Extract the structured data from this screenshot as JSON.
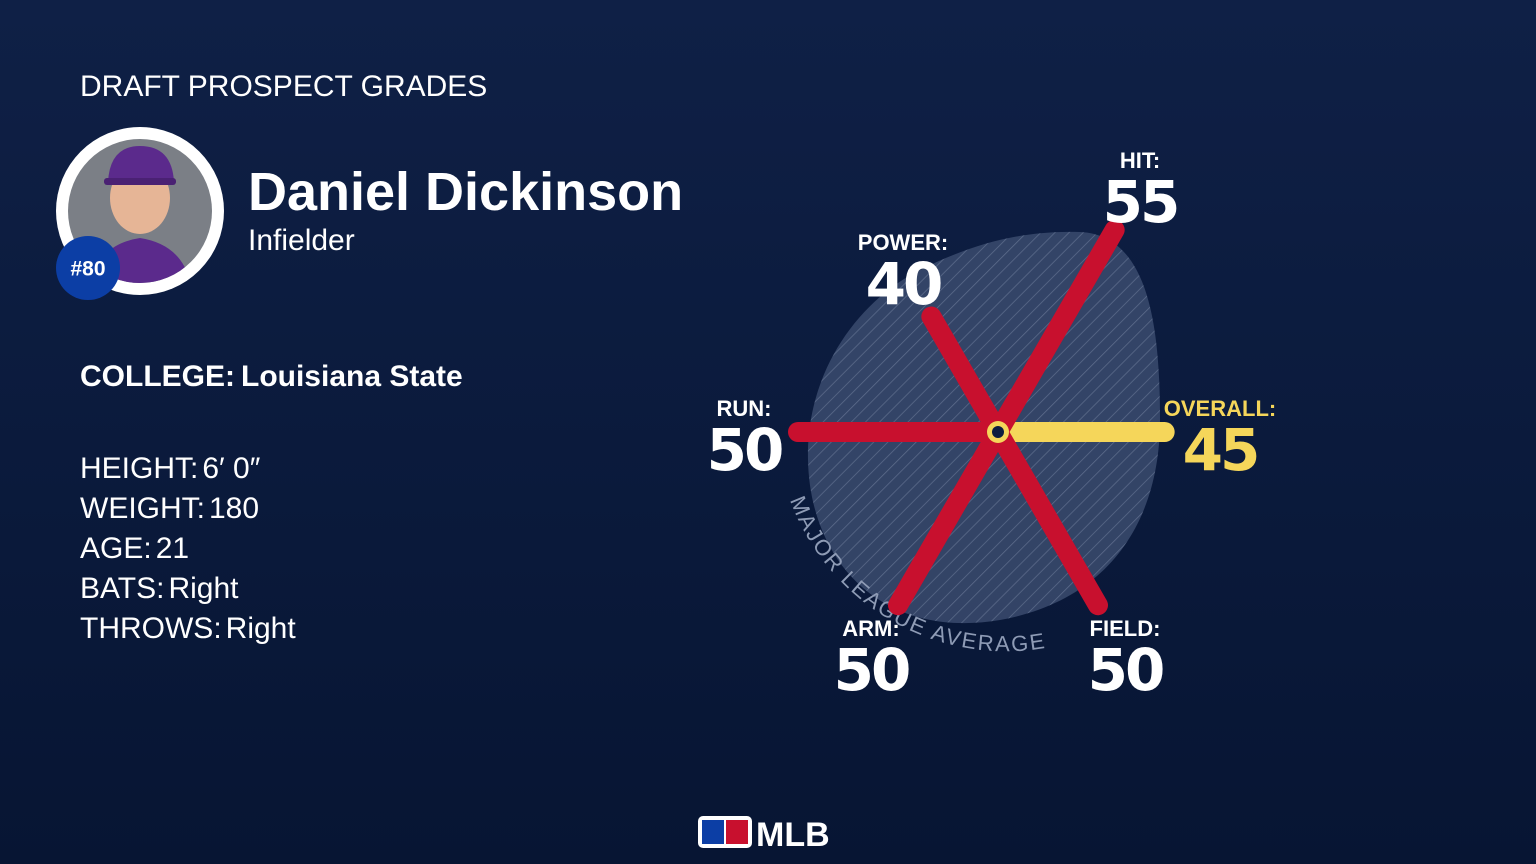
{
  "header": {
    "title": "DRAFT PROSPECT GRADES"
  },
  "player": {
    "name": "Daniel Dickinson",
    "position": "Infielder",
    "number": "#80"
  },
  "college": {
    "label": "COLLEGE:",
    "value": "Louisiana State"
  },
  "details": [
    {
      "label": "HEIGHT:",
      "value": "6′ 0″"
    },
    {
      "label": "WEIGHT:",
      "value": "180"
    },
    {
      "label": "AGE:",
      "value": "21"
    },
    {
      "label": "BATS:",
      "value": "Right"
    },
    {
      "label": "THROWS:",
      "value": "Right"
    }
  ],
  "chart_data": {
    "type": "radial",
    "categories": [
      "OVERALL:",
      "FIELD:",
      "ARM:",
      "RUN:",
      "POWER:",
      "HIT:"
    ],
    "values": [
      45,
      50,
      50,
      50,
      40,
      55
    ],
    "colors": [
      "#f5d65a",
      "#c8102e",
      "#c8102e",
      "#c8102e",
      "#c8102e",
      "#c8102e"
    ],
    "rlim": [
      20,
      80
    ],
    "average_label": "MAJOR LEAGUE AVERAGE"
  },
  "footer": {
    "logo": "MLB"
  }
}
